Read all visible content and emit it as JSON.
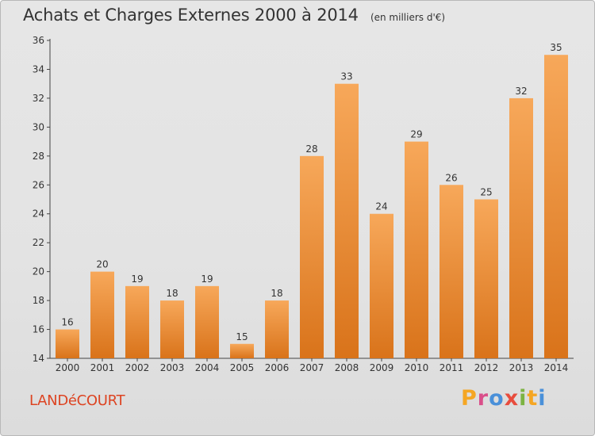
{
  "header": {
    "title": "Achats et Charges Externes 2000 à 2014",
    "subtitle": "(en milliers d'€)"
  },
  "footer": {
    "commune": "LANDéCOURT",
    "brand": "Proxiti",
    "brand_colors": [
      "#f5a623",
      "#d94f8a",
      "#4a90d9",
      "#e84c3d",
      "#7cb342",
      "#f5a623",
      "#4a90d9"
    ]
  },
  "colors": {
    "bar_top": "#f7a85a",
    "bar_bottom": "#d9731a",
    "axis": "#444444",
    "text": "#333333",
    "commune": "#dd4422"
  },
  "chart_data": {
    "type": "bar",
    "categories": [
      "2000",
      "2001",
      "2002",
      "2003",
      "2004",
      "2005",
      "2006",
      "2007",
      "2008",
      "2009",
      "2010",
      "2011",
      "2012",
      "2013",
      "2014"
    ],
    "values": [
      16,
      20,
      19,
      18,
      19,
      15,
      18,
      28,
      33,
      24,
      29,
      26,
      25,
      32,
      35
    ],
    "ylim": [
      14,
      36
    ],
    "yticks": [
      14,
      16,
      18,
      20,
      22,
      24,
      26,
      28,
      30,
      32,
      34,
      36
    ],
    "grid": false,
    "data_labels": true,
    "title": "Achats et Charges Externes 2000 à 2014",
    "xlabel": "",
    "ylabel": ""
  }
}
